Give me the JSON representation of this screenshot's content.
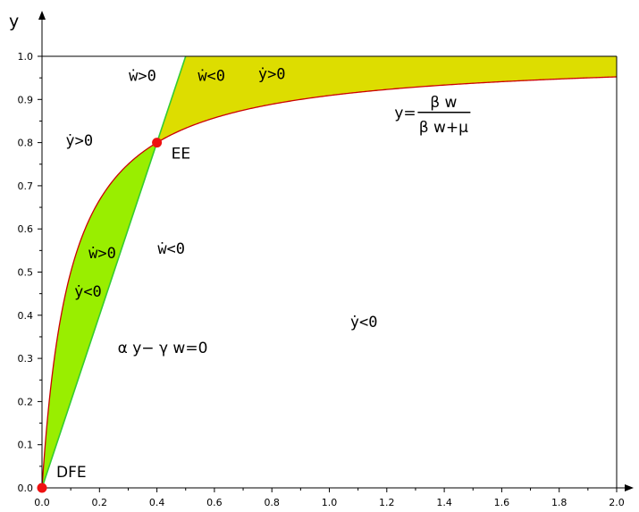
{
  "chart_data": {
    "type": "line",
    "ylabel": "y",
    "xlabel": "",
    "xlim": [
      0,
      2.0
    ],
    "ylim": [
      0,
      1.0
    ],
    "x_ticks": [
      "0.0",
      "0.2",
      "0.4",
      "0.6",
      "0.8",
      "1.0",
      "1.2",
      "1.4",
      "1.6",
      "1.8",
      "2.0"
    ],
    "y_ticks": [
      "0.0",
      "0.1",
      "0.2",
      "0.3",
      "0.4",
      "0.5",
      "0.6",
      "0.7",
      "0.8",
      "0.9",
      "1.0"
    ],
    "grid": false,
    "parameters": {
      "beta_over_mu": 10,
      "alpha_over_gamma": 2
    },
    "curves": [
      {
        "kind": "function",
        "formula": "y = 10w / (10w + 1)",
        "color": "#cc0000"
      },
      {
        "kind": "line",
        "formula": "y = 2w",
        "color": "#33cc33"
      }
    ],
    "regions": [
      {
        "color": "#99ee00",
        "between": "y = 2w and y = 10w/(10w+1)",
        "x_range": [
          0,
          0.4
        ]
      },
      {
        "color": "#dddd00",
        "between": "y = 10w/(10w+1) and y = 1",
        "x_range": [
          0.4,
          2.0
        ]
      }
    ],
    "points": [
      {
        "label": "DFE",
        "x": 0,
        "y": 0,
        "color": "#ee1111"
      },
      {
        "label": "EE",
        "x": 0.4,
        "y": 0.8,
        "color": "#ee1111"
      }
    ],
    "annotations": [
      {
        "text": "ẇ>0",
        "x": 0.35,
        "y": 0.955
      },
      {
        "text": "ẇ<0",
        "x": 0.59,
        "y": 0.955
      },
      {
        "text": "ẏ>0",
        "x": 0.8,
        "y": 0.96
      },
      {
        "text": "ẏ>0",
        "x": 0.13,
        "y": 0.805
      },
      {
        "text": "ẇ>0",
        "x": 0.21,
        "y": 0.545
      },
      {
        "text": "ẇ<0",
        "x": 0.45,
        "y": 0.555
      },
      {
        "text": "ẏ<0",
        "x": 0.16,
        "y": 0.455
      },
      {
        "text": "ẏ<0",
        "x": 1.12,
        "y": 0.385
      },
      {
        "text": "α y− γ w=0",
        "x": 0.42,
        "y": 0.325
      }
    ],
    "formula_label": {
      "lhs": "y=",
      "numerator": "β w",
      "denominator": "β w+μ",
      "x": 1.32,
      "y": 0.87
    }
  }
}
